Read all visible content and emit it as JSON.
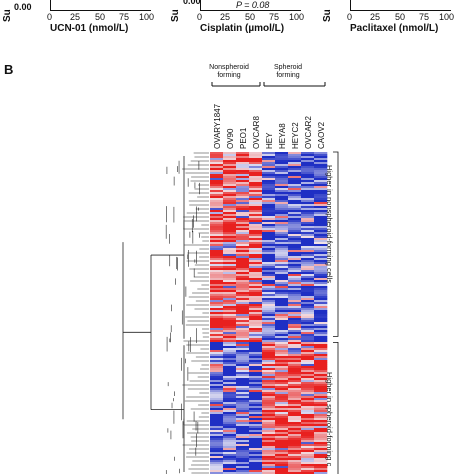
{
  "panel_a": {
    "cropped_ylabel": "Su",
    "cropped_tick": "0.00",
    "subplots": [
      {
        "xlabel": "UCN-01 (nmol/L)",
        "xticks": [
          "0",
          "25",
          "50",
          "75",
          "100"
        ]
      },
      {
        "xlabel": "Cisplatin (µmol/L)",
        "xticks": [
          "0",
          "25",
          "50",
          "75",
          "100"
        ],
        "annotation": "P = 0.08"
      },
      {
        "xlabel": "Paclitaxel (nmol/L)",
        "xticks": [
          "0",
          "25",
          "50",
          "75",
          "100"
        ]
      }
    ]
  },
  "panel_b": {
    "label": "B",
    "groups": [
      {
        "label": "Nonspheroid\nforming",
        "samples": [
          "OVARY1847",
          "OV90",
          "PEO1",
          "OVCAR8"
        ]
      },
      {
        "label": "Spheroid\nforming",
        "samples": [
          "HEY",
          "HEYA8",
          "HEYC2",
          "OVCAR2",
          "CAOV2"
        ]
      }
    ],
    "side_labels": [
      "Higher in nonspheroid-forming cells",
      "Higher in spheroid-forming c"
    ],
    "colors": {
      "high": "#e8201f",
      "low": "#1f2fc4",
      "mid": "#f2f0f6"
    }
  }
}
